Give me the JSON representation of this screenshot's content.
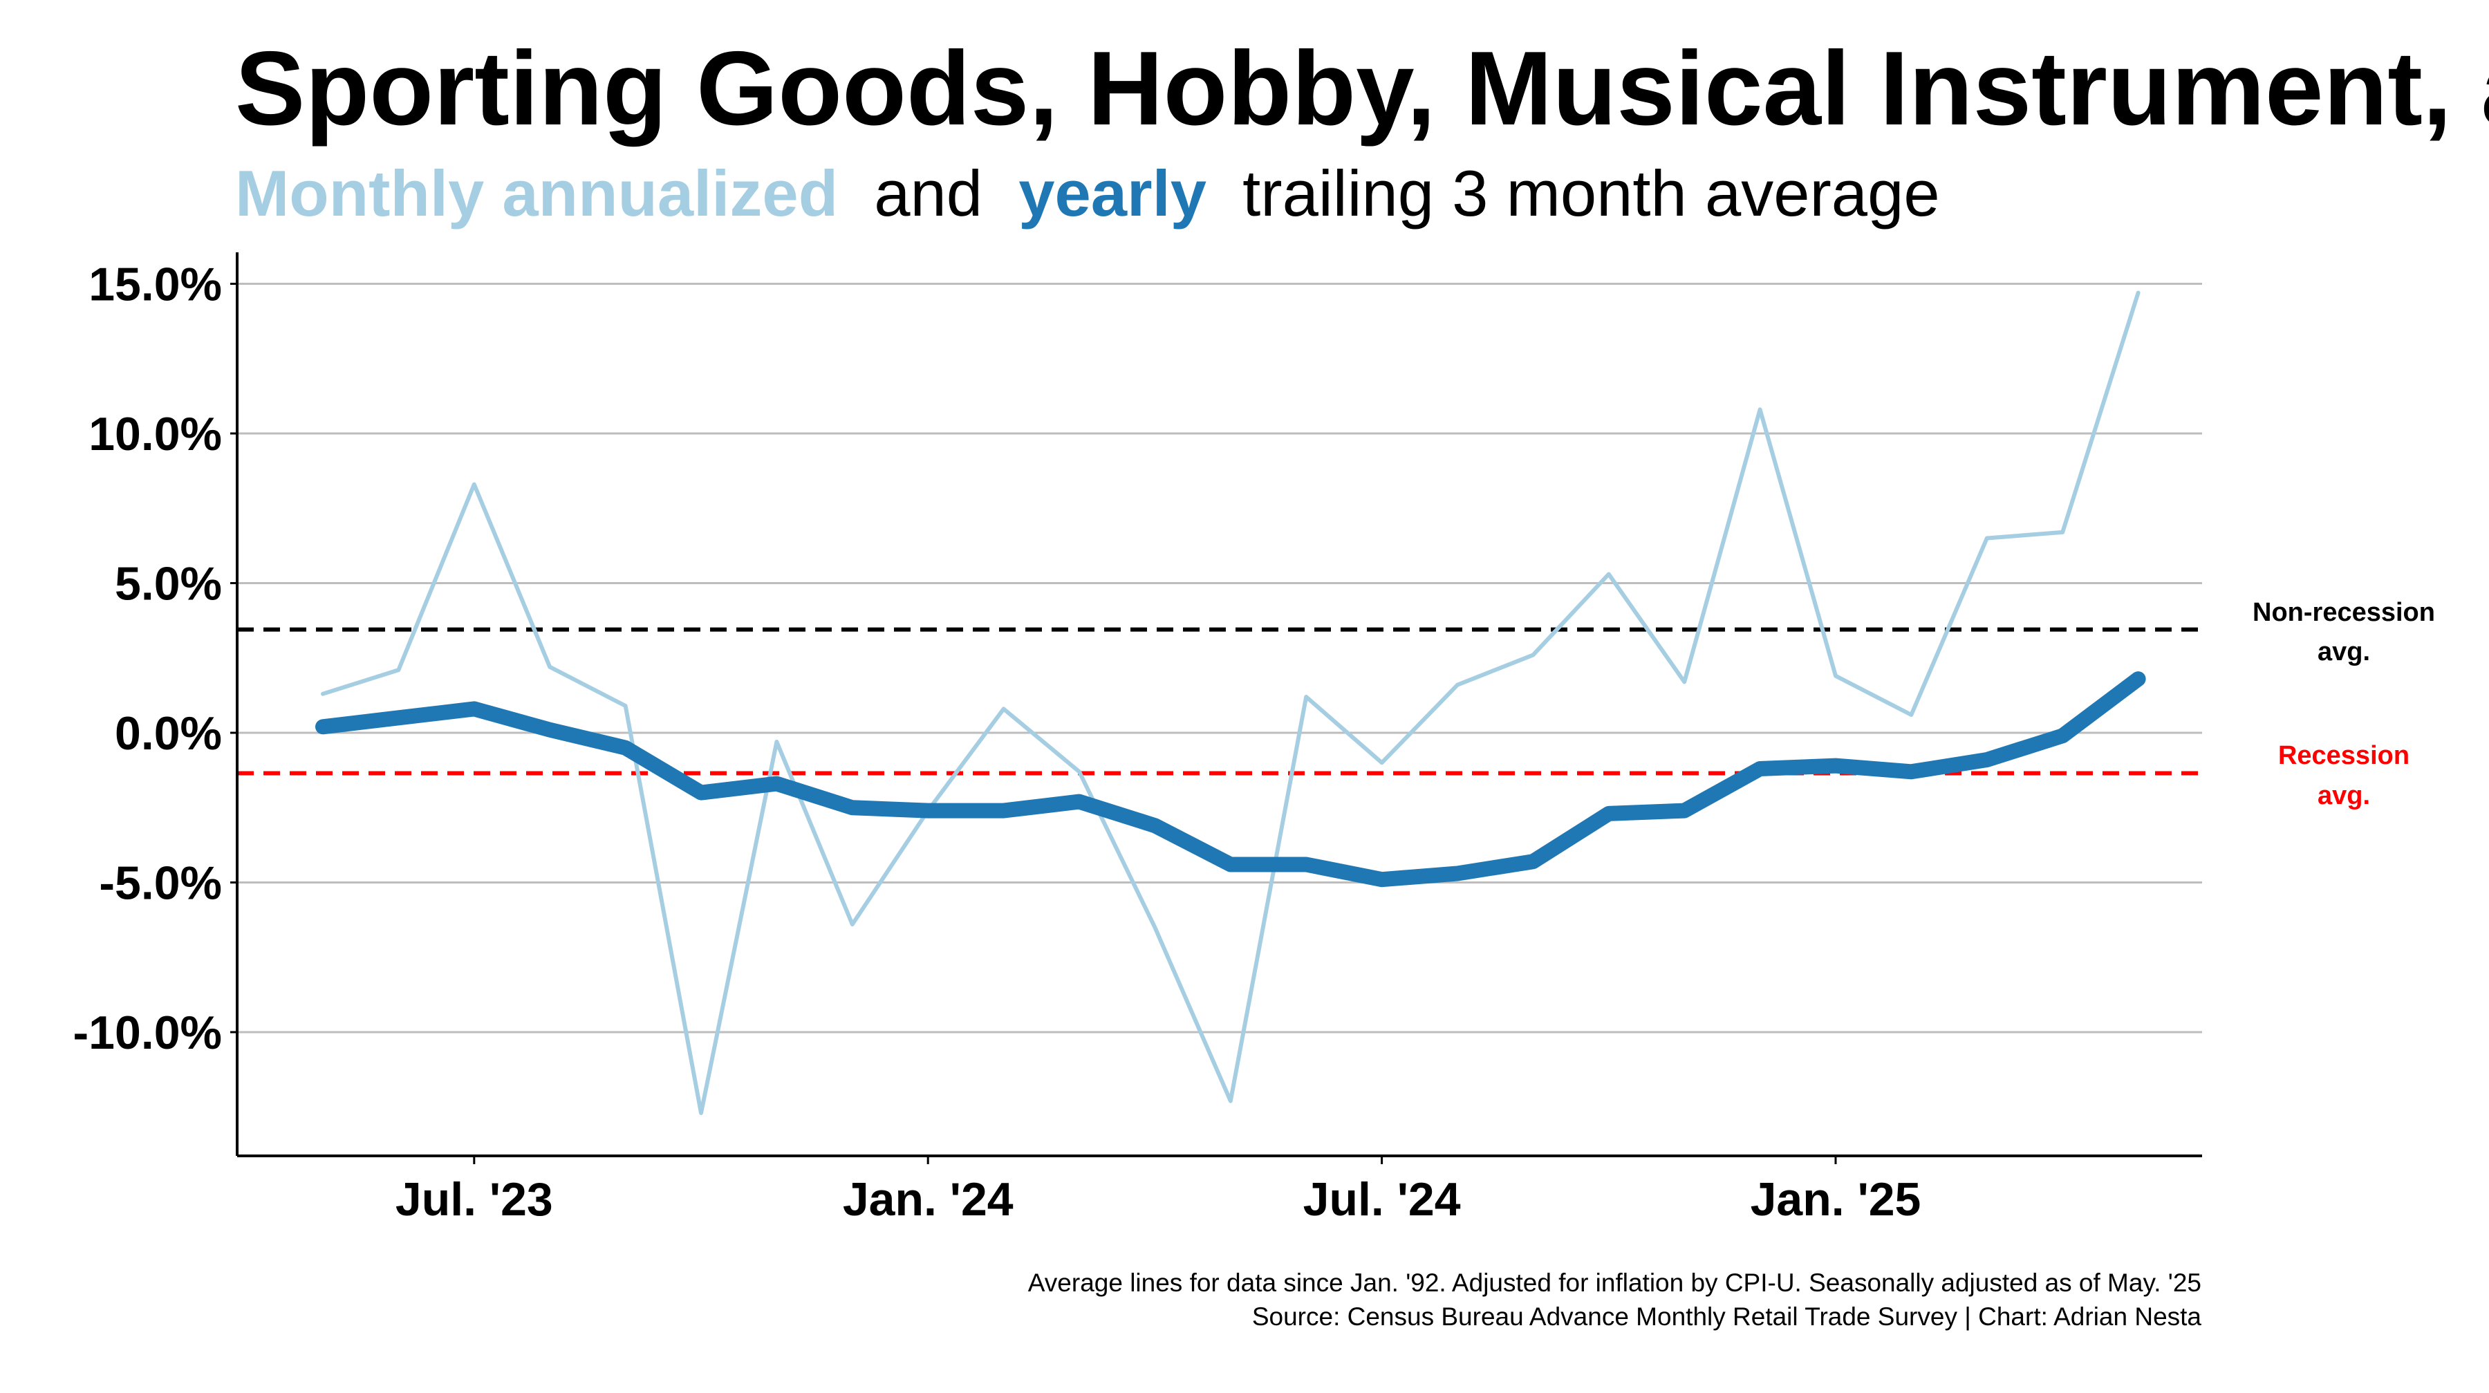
{
  "title": "Sporting Goods, Hobby, Musical Instrument, a",
  "subtitle": {
    "monthly_label": "Monthly annualized",
    "connector": "and",
    "yearly_label": "yearly",
    "rest": "trailing 3 month average"
  },
  "colors": {
    "monthly": "#a6cee3",
    "yearly": "#1f78b4",
    "non_recession": "#000000",
    "recession": "#ff0000",
    "grid": "#bdbdbd"
  },
  "reference_lines": {
    "non_recession": {
      "value": 3.45,
      "label_line1": "Non-recession",
      "label_line2": "avg."
    },
    "recession": {
      "value": -1.35,
      "label_line1": "Recession",
      "label_line2": "avg."
    }
  },
  "footer": {
    "line1": "Average lines for data since Jan. '92. Adjusted for inflation by CPI-U. Seasonally adjusted as of May. '25",
    "line2": "Source: Census Bureau Advance Monthly Retail Trade Survey | Chart: Adrian Nesta"
  },
  "chart_data": {
    "type": "line",
    "x": [
      "2023-05",
      "2023-06",
      "2023-07",
      "2023-08",
      "2023-09",
      "2023-10",
      "2023-11",
      "2023-12",
      "2024-01",
      "2024-02",
      "2024-03",
      "2024-04",
      "2024-05",
      "2024-06",
      "2024-07",
      "2024-08",
      "2024-09",
      "2024-10",
      "2024-11",
      "2024-12",
      "2025-01",
      "2025-02",
      "2025-03",
      "2025-04",
      "2025-05"
    ],
    "series": [
      {
        "name": "Monthly annualized",
        "values": [
          1.3,
          2.1,
          8.3,
          2.2,
          0.9,
          -12.7,
          -0.3,
          -6.4,
          -2.6,
          0.8,
          -1.3,
          -6.5,
          -12.3,
          1.2,
          -1.0,
          1.6,
          2.6,
          5.3,
          1.7,
          10.8,
          1.9,
          0.6,
          6.5,
          6.7,
          14.7
        ]
      },
      {
        "name": "yearly",
        "values": [
          0.2,
          0.5,
          0.8,
          0.1,
          -0.5,
          -2.0,
          -1.7,
          -2.5,
          -2.6,
          -2.6,
          -2.3,
          -3.1,
          -4.4,
          -4.4,
          -4.9,
          -4.7,
          -4.3,
          -2.7,
          -2.6,
          -1.2,
          -1.1,
          -1.3,
          -0.9,
          -0.1,
          1.8
        ]
      }
    ],
    "y_ticks": [
      15,
      10,
      5,
      0,
      -5,
      -10
    ],
    "y_tick_labels": [
      "15.0%",
      "10.0%",
      "5.0%",
      "0.0%",
      "-5.0%",
      "-10.0%"
    ],
    "ylim": [
      -14,
      16
    ],
    "x_ticks": [
      "2023-07",
      "2024-01",
      "2024-07",
      "2025-01"
    ],
    "x_tick_labels": [
      "Jul. '23",
      "Jan. '24",
      "Jul. '24",
      "Jan. '25"
    ],
    "grid": true
  }
}
